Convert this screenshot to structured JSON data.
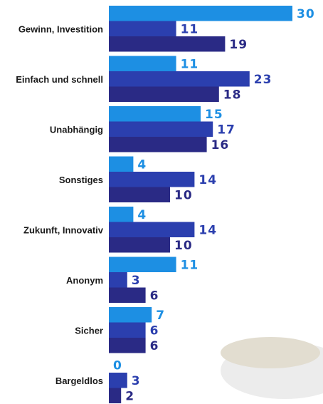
{
  "chart_data": {
    "type": "grouped-hbar",
    "categories": [
      "Gewinn, Investition",
      "Einfach und schnell",
      "Unabhängig",
      "Sonstiges",
      "Zukunft, Innovativ",
      "Anonym",
      "Sicher",
      "Bargeldlos"
    ],
    "series": [
      {
        "color": "#1d8fe3",
        "values": [
          30,
          11,
          15,
          4,
          4,
          11,
          7,
          0
        ]
      },
      {
        "color": "#2b3fae",
        "values": [
          11,
          23,
          17,
          14,
          14,
          3,
          6,
          3
        ]
      },
      {
        "color": "#2a2a85",
        "values": [
          19,
          18,
          16,
          10,
          10,
          6,
          6,
          2
        ]
      }
    ]
  }
}
